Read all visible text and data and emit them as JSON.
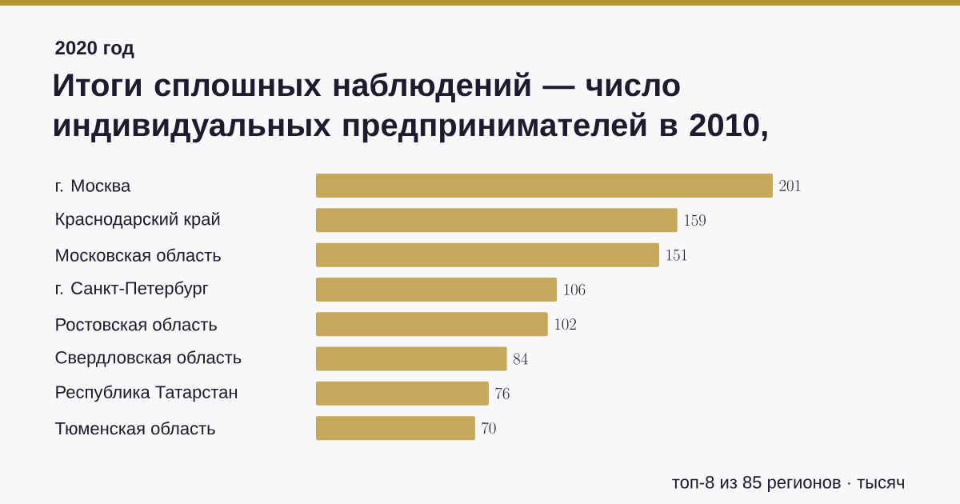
{
  "chart_data": {
    "type": "bar",
    "orientation": "horizontal",
    "title": "Итоги сплошных наблюдений — число индивидуальных предпринимателей в 2010,",
    "subtitle": "2020 год",
    "categories": [
      "г. Москва",
      "Краснодарский край",
      "Московская область",
      "г. Санкт-Петербург",
      "Ростовская область",
      "Свердловская область",
      "Республика Татарстан",
      "Тюменская область"
    ],
    "values": [
      201,
      159,
      151,
      106,
      102,
      84,
      76,
      70
    ],
    "color": "#c6a85c",
    "data_labels": true,
    "annotations": [
      "топ-8 из 85 регионов · тысяч"
    ]
  }
}
